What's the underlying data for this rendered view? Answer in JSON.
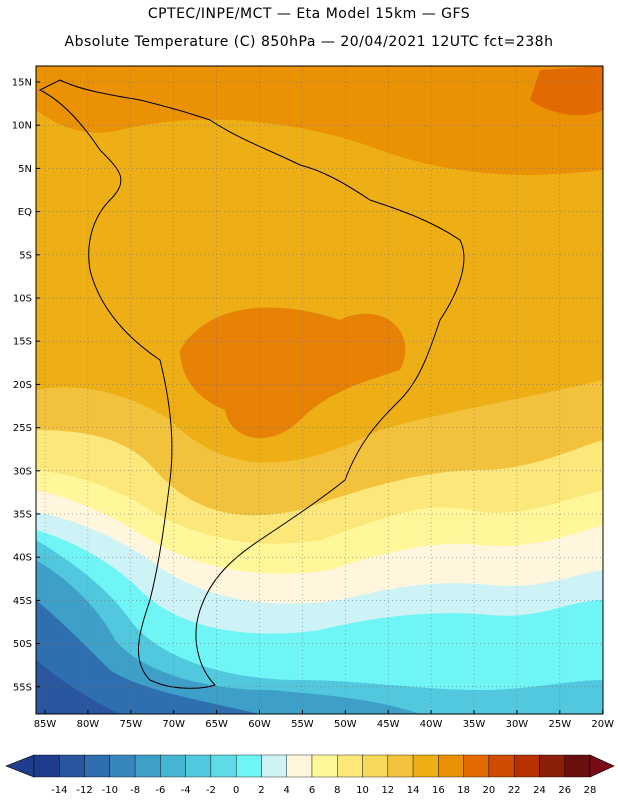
{
  "header": {
    "line1": "CPTEC/INPE/MCT —  Eta Model 15km — GFS",
    "line2": "Absolute Temperature (C) 850hPa — 20/04/2021 12UTC fct=238h"
  },
  "map": {
    "lat_labels": [
      "15N",
      "10N",
      "5N",
      "EQ",
      "5S",
      "10S",
      "15S",
      "20S",
      "25S",
      "30S",
      "35S",
      "40S",
      "45S",
      "50S",
      "55S"
    ],
    "lon_labels": [
      "85W",
      "80W",
      "75W",
      "70W",
      "65W",
      "60W",
      "55W",
      "50W",
      "45W",
      "40W",
      "35W",
      "30W",
      "25W",
      "20W"
    ],
    "grid": true
  },
  "colorbar": {
    "ticks": [
      "-14",
      "-12",
      "-10",
      "-8",
      "-6",
      "-4",
      "-2",
      "0",
      "2",
      "4",
      "6",
      "8",
      "10",
      "12",
      "14",
      "16",
      "18",
      "20",
      "22",
      "24",
      "26",
      "28"
    ],
    "colors": [
      "#1f3d8c",
      "#2a56a0",
      "#2e6fb0",
      "#3787bd",
      "#3ea0c9",
      "#46b6d4",
      "#51c8de",
      "#5fdbe8",
      "#6ff5f5",
      "#cdf3f6",
      "#fff6dd",
      "#fff79a",
      "#fbe77a",
      "#f6d85d",
      "#f2c23c",
      "#eeaf16",
      "#ea9104",
      "#e36a00",
      "#d04c00",
      "#b83100",
      "#8b1f0a",
      "#6a0f10"
    ],
    "left_end": "#1f3d8c",
    "right_end": "#7a0a1a"
  }
}
